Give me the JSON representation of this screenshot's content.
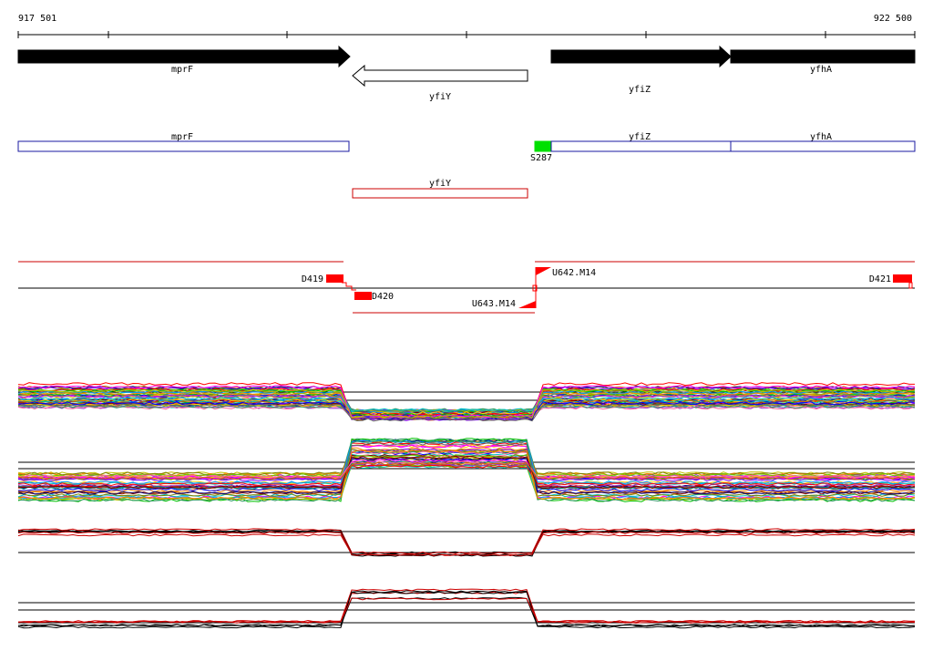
{
  "ruler": {
    "start_label": "917 501",
    "end_label": "922 500"
  },
  "genes": [
    {
      "name": "mprF",
      "strand": "+",
      "fill": "#000000"
    },
    {
      "name": "yfiY",
      "strand": "-",
      "fill": "#ffffff"
    },
    {
      "name": "yfiZ",
      "strand": "+",
      "fill": "#000000"
    },
    {
      "name": "yfhA",
      "strand": "+",
      "fill": "#000000"
    }
  ],
  "annotations_forward": [
    {
      "name": "mprF",
      "color": "#1a1aa0"
    },
    {
      "name": "yfiZ",
      "color": "#1a1aa0"
    },
    {
      "name": "yfhA",
      "color": "#1a1aa0"
    }
  ],
  "annotations_reverse": [
    {
      "name": "yfiY",
      "color": "#cc0000"
    }
  ],
  "marker": {
    "label": "S287",
    "color": "#00e000"
  },
  "features": {
    "d419": "D419",
    "d420": "D420",
    "d421": "D421",
    "u642": "U642.M14",
    "u643": "U643.M14",
    "feature_color": "#ff0000"
  },
  "colors": {
    "track_red": "#cc0000",
    "baseline": "#000000"
  }
}
